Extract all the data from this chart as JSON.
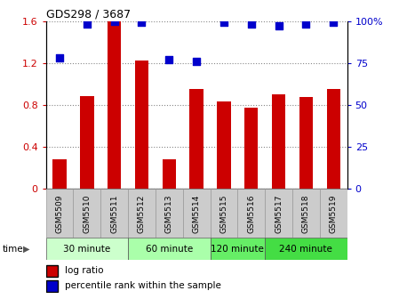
{
  "title": "GDS298 / 3687",
  "samples": [
    "GSM5509",
    "GSM5510",
    "GSM5511",
    "GSM5512",
    "GSM5513",
    "GSM5514",
    "GSM5515",
    "GSM5516",
    "GSM5517",
    "GSM5518",
    "GSM5519"
  ],
  "log_ratio": [
    0.28,
    0.88,
    1.6,
    1.22,
    0.28,
    0.95,
    0.83,
    0.77,
    0.9,
    0.87,
    0.95
  ],
  "percentile": [
    78,
    98,
    100,
    99,
    77,
    76,
    99,
    98,
    97,
    98,
    99
  ],
  "bar_color": "#cc0000",
  "dot_color": "#0000cc",
  "ylim_left": [
    0,
    1.6
  ],
  "ylim_right": [
    0,
    100
  ],
  "yticks_left": [
    0,
    0.4,
    0.8,
    1.2,
    1.6
  ],
  "yticks_right": [
    0,
    25,
    50,
    75,
    100
  ],
  "ytick_labels_left": [
    "0",
    "0.4",
    "0.8",
    "1.2",
    "1.6"
  ],
  "ytick_labels_right": [
    "0",
    "25",
    "50",
    "75",
    "100%"
  ],
  "groups": [
    {
      "label": "30 minute",
      "start": 0,
      "end": 3,
      "color": "#ccffcc"
    },
    {
      "label": "60 minute",
      "start": 3,
      "end": 6,
      "color": "#aaffaa"
    },
    {
      "label": "120 minute",
      "start": 6,
      "end": 8,
      "color": "#66ee66"
    },
    {
      "label": "240 minute",
      "start": 8,
      "end": 11,
      "color": "#44dd44"
    }
  ],
  "time_label": "time",
  "legend_bar_label": "log ratio",
  "legend_dot_label": "percentile rank within the sample",
  "grid_color": "#888888",
  "bg_color": "#ffffff",
  "bar_color_left_axis": "#cc0000",
  "dot_color_right_axis": "#0000cc",
  "bar_width": 0.5,
  "dot_size": 28,
  "xtick_bg": "#cccccc",
  "xtick_border": "#999999"
}
